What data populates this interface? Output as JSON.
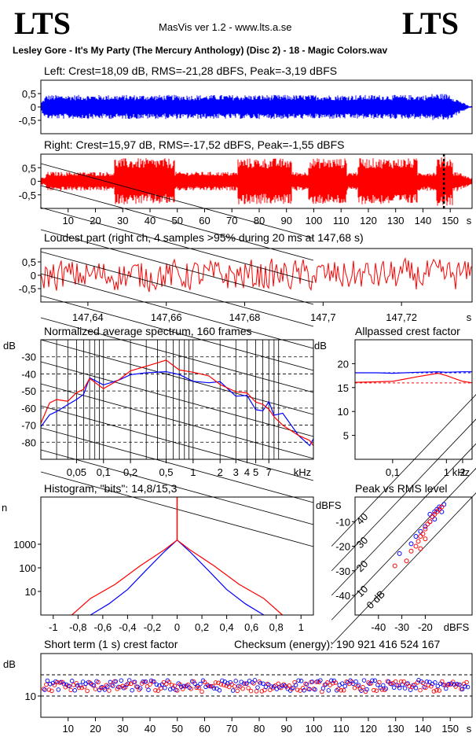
{
  "header": {
    "logo_left": "LTS",
    "logo_right": "LTS",
    "app_title": "MasVis ver 1.2 - www.lts.a.se",
    "file_title": "Lesley Gore - It's My Party (The Mercury Anthology) (Disc 2) - 18 - Magic Colors.wav"
  },
  "colors": {
    "left_channel": "#0000ff",
    "right_channel": "#ff0000",
    "grid": "#000000"
  },
  "panels": {
    "left": {
      "title": "Left: Crest=18,09 dB, RMS=-21,28 dBFS, Peak=-3,19 dBFS"
    },
    "right": {
      "title": "Right: Crest=15,97 dB, RMS=-17,52 dBFS, Peak=-1,55 dBFS"
    },
    "loudest": {
      "title": "Loudest part (right ch, 4 samples >95% during 20 ms at 147,68 s)"
    },
    "spectrum": {
      "title": "Normalized average spectrum, 160 frames"
    },
    "allpass": {
      "title": "Allpassed crest factor"
    },
    "histogram": {
      "title": "Histogram, \"bits\": 14,8/15,3"
    },
    "peakrms": {
      "title": "Peak vs RMS level"
    },
    "shortcrest": {
      "title": "Short term (1 s) crest factor",
      "checksum": "Checksum (energy):   190 921 416 524 167"
    }
  },
  "chart_data": [
    {
      "type": "area",
      "title": "Left: Crest=18,09 dB, RMS=-21,28 dBFS, Peak=-3,19 dBFS",
      "yticks": [
        "0,5",
        "0",
        "-0,5"
      ],
      "ylim": [
        -1,
        1
      ],
      "xlim": [
        0,
        158
      ],
      "series": [
        {
          "color": "#0000ff"
        }
      ]
    },
    {
      "type": "area",
      "title": "Right: Crest=15,97 dB, RMS=-17,52 dBFS, Peak=-1,55 dBFS",
      "yticks": [
        "0,5",
        "0",
        "-0,5"
      ],
      "ylim": [
        -1,
        1
      ],
      "xlim": [
        0,
        158
      ],
      "xticks": [
        "10",
        "20",
        "30",
        "40",
        "50",
        "60",
        "70",
        "80",
        "90",
        "100",
        "110",
        "120",
        "130",
        "140",
        "150"
      ],
      "xunit": "s",
      "marker_x": 147.68,
      "series": [
        {
          "color": "#ff0000"
        }
      ]
    },
    {
      "type": "line",
      "title": "Loudest part (right ch, 4 samples >95% during 20 ms at 147,68 s)",
      "yticks": [
        "0,5",
        "0",
        "-0,5"
      ],
      "ylim": [
        -1,
        1
      ],
      "xticks": [
        "147,64",
        "147,66",
        "147,68",
        "147,7",
        "147,72"
      ],
      "xunit": "s",
      "xlim": [
        147.628,
        147.738
      ],
      "series": [
        {
          "color": "#ff0000"
        }
      ]
    },
    {
      "type": "line",
      "title": "Normalized average spectrum, 160 frames",
      "ylabel": "dB",
      "yticks": [
        "-30",
        "-40",
        "-50",
        "-60",
        "-70",
        "-80"
      ],
      "ylim": [
        -90,
        -20
      ],
      "xticks": [
        "0,05",
        "0,1",
        "0,2",
        "0,5",
        "1",
        "2",
        "3",
        "4",
        "5",
        "7"
      ],
      "xunit": "kHz",
      "xlim": [
        0.02,
        22
      ],
      "xscale": "log",
      "series": [
        {
          "color": "#0000ff",
          "x": [
            0.02,
            0.025,
            0.03,
            0.04,
            0.05,
            0.06,
            0.07,
            0.1,
            0.15,
            0.2,
            0.3,
            0.5,
            0.7,
            1,
            1.5,
            2,
            3,
            4,
            5,
            6,
            7,
            8,
            10,
            15,
            20,
            22
          ],
          "y": [
            -71,
            -64,
            -62,
            -58,
            -55,
            -52,
            -40,
            -44,
            -45,
            -42,
            -37,
            -38,
            -41,
            -44,
            -43,
            -47,
            -51,
            -55,
            -59,
            -62,
            -55,
            -67,
            -63,
            -76,
            -82,
            -78
          ]
        },
        {
          "color": "#ff0000",
          "x": [
            0.02,
            0.025,
            0.03,
            0.04,
            0.05,
            0.06,
            0.07,
            0.1,
            0.15,
            0.2,
            0.3,
            0.5,
            0.7,
            1,
            1.5,
            2,
            3,
            4,
            5,
            6,
            7,
            8,
            10,
            15,
            20,
            22
          ],
          "y": [
            -69,
            -57,
            -55,
            -56,
            -51,
            -49,
            -43,
            -48,
            -45,
            -40,
            -36,
            -34,
            -35,
            -38,
            -40,
            -44,
            -48,
            -52,
            -55,
            -57,
            -59,
            -64,
            -70,
            -76,
            -79,
            -82
          ]
        }
      ]
    },
    {
      "type": "line",
      "title": "Allpassed crest factor",
      "ylabel": "dB",
      "yticks": [
        "20",
        "15",
        "10",
        "5"
      ],
      "ylim": [
        0,
        25
      ],
      "xticks": [
        "0,1",
        "1",
        "2"
      ],
      "xunit": "kHz",
      "xlim": [
        0.02,
        3
      ],
      "xscale": "log",
      "series": [
        {
          "color": "#0000ff",
          "x": [
            0.02,
            0.05,
            0.1,
            0.3,
            0.7,
            1,
            2,
            3
          ],
          "y": [
            18.1,
            18.1,
            18.0,
            18.2,
            18.3,
            18.2,
            18.3,
            18.3
          ]
        },
        {
          "color": "#ff0000",
          "x": [
            0.02,
            0.05,
            0.1,
            0.3,
            0.7,
            1,
            2,
            3
          ],
          "y": [
            16.1,
            16.2,
            16.3,
            17.3,
            18.0,
            17.5,
            16.3,
            16.0
          ]
        }
      ],
      "reference": [
        {
          "color": "#0000ff",
          "y": 18.09
        },
        {
          "color": "#ff0000",
          "y": 15.97
        }
      ]
    },
    {
      "type": "line",
      "title": "Histogram, \"bits\": 14,8/15,3",
      "ylabel": "n",
      "yscale": "log",
      "yticks": [
        "1000",
        "100",
        "10"
      ],
      "ylim": [
        1,
        100000
      ],
      "xticks": [
        "-1",
        "-0,8",
        "-0,6",
        "-0,4",
        "-0,2",
        "0",
        "0,2",
        "0,4",
        "0,6",
        "0,8",
        "1"
      ],
      "xlim": [
        -1.1,
        1.1
      ],
      "series": [
        {
          "color": "#0000ff",
          "x": [
            -0.7,
            -0.55,
            -0.4,
            -0.25,
            -0.1,
            0,
            0.1,
            0.25,
            0.4,
            0.55,
            0.7
          ],
          "y": [
            1,
            3,
            12,
            80,
            500,
            1500,
            500,
            80,
            12,
            3,
            1
          ]
        },
        {
          "color": "#ff0000",
          "x": [
            -0.85,
            -0.7,
            -0.5,
            -0.3,
            -0.1,
            0,
            0.1,
            0.3,
            0.5,
            0.7,
            0.85
          ],
          "y": [
            1,
            5,
            20,
            120,
            600,
            1500,
            600,
            120,
            20,
            5,
            1
          ]
        }
      ]
    },
    {
      "type": "scatter",
      "title": "Peak vs RMS level",
      "ylabel": "dBFS",
      "xlabel": "dBFS",
      "yticks": [
        "-10",
        "-20",
        "-30",
        "-40"
      ],
      "ylim": [
        -48,
        0
      ],
      "xticks": [
        "-40",
        "-30",
        "-20"
      ],
      "xlim": [
        -50,
        0
      ],
      "diagonals": [
        "40",
        "30",
        "20",
        "10",
        "0 dB"
      ],
      "series": [
        {
          "color": "#0000ff",
          "x": [
            -18,
            -17,
            -16,
            -15,
            -14,
            -13,
            -12,
            -16,
            -18,
            -20,
            -22,
            -24,
            -26,
            -31
          ],
          "y": [
            -7,
            -8,
            -6,
            -5,
            -4,
            -6,
            -3,
            -9,
            -10,
            -12,
            -14,
            -16,
            -19,
            -23
          ]
        },
        {
          "color": "#ff0000",
          "x": [
            -23,
            -22,
            -21,
            -20,
            -19,
            -18,
            -17,
            -16,
            -15,
            -14,
            -13,
            -24,
            -26,
            -28,
            -33,
            -22,
            -20
          ],
          "y": [
            -18,
            -16,
            -15,
            -13,
            -11,
            -10,
            -8,
            -7,
            -6,
            -5,
            -4,
            -20,
            -22,
            -26,
            -28,
            -21,
            -17
          ]
        }
      ]
    },
    {
      "type": "scatter",
      "title": "Short term (1 s) crest factor",
      "ylabel": "dB",
      "yticks": [
        "10"
      ],
      "ylim": [
        0,
        30
      ],
      "xticks": [
        "10",
        "20",
        "30",
        "40",
        "50",
        "60",
        "70",
        "80",
        "90",
        "100",
        "110",
        "120",
        "130",
        "140",
        "150"
      ],
      "xunit": "s",
      "xlim": [
        0,
        158
      ],
      "series": [
        {
          "color": "#0000ff"
        },
        {
          "color": "#ff0000"
        }
      ]
    }
  ]
}
